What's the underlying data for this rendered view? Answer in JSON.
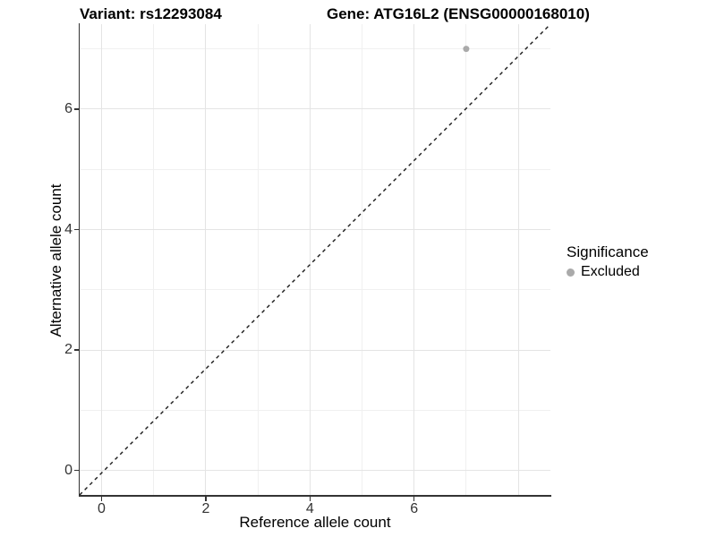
{
  "titles": {
    "variant": "Variant: rs12293084",
    "gene": "Gene: ATG16L2 (ENSG00000168010)"
  },
  "legend": {
    "title": "Significance",
    "items": [
      {
        "label": "Excluded",
        "color": "#aaaaaa"
      }
    ]
  },
  "colors": {
    "point": "#aaaaaa",
    "grid_major": "#e4e4e4",
    "grid_minor": "#f0f0f0",
    "axis": "#333333",
    "reference_line": "#1a1a1a"
  },
  "chart_data": {
    "type": "scatter",
    "title_left": "Variant: rs12293084",
    "title_right": "Gene: ATG16L2 (ENSG00000168010)",
    "xlabel": "Reference allele count",
    "ylabel": "Alternative allele count",
    "xlim": [
      -0.42,
      8.62
    ],
    "ylim": [
      -0.41,
      7.41
    ],
    "x_ticks": [
      0,
      2,
      4,
      6
    ],
    "y_ticks": [
      0,
      2,
      4,
      6
    ],
    "x_grid_major": [
      0,
      2,
      4,
      6,
      8
    ],
    "x_grid_minor": [
      1,
      3,
      5,
      7
    ],
    "y_grid_major": [
      0,
      2,
      4,
      6
    ],
    "y_grid_minor": [
      1,
      3,
      5,
      7
    ],
    "grid": true,
    "legend_position": "right",
    "legend_title": "Significance",
    "series": [
      {
        "name": "Excluded",
        "color": "#aaaaaa",
        "points": [
          {
            "x": 7,
            "y": 7
          }
        ]
      }
    ],
    "reference_line": {
      "description": "dashed identity line drawn corner-to-corner of panel",
      "style": "dashed",
      "x1": -0.42,
      "y1": -0.41,
      "x2": 8.62,
      "y2": 7.41
    }
  }
}
